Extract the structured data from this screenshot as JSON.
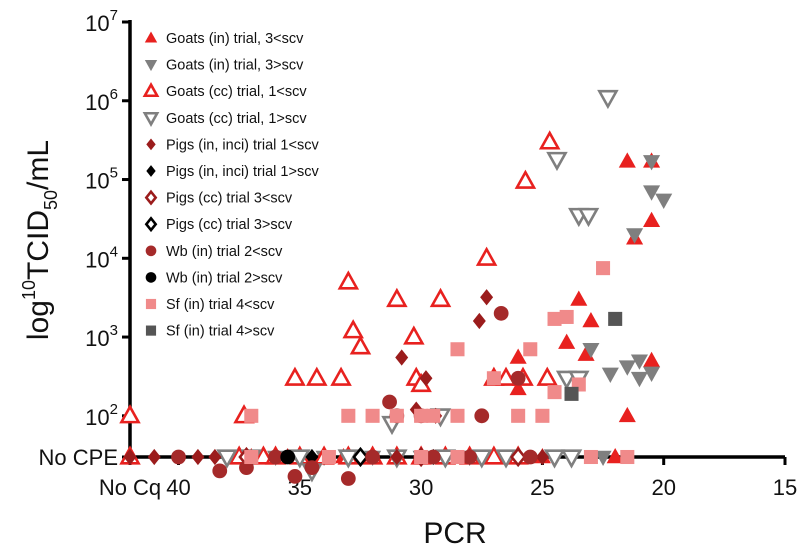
{
  "chart_data": {
    "type": "scatter",
    "title": "",
    "xlabel": "PCR",
    "ylabel": {
      "pre": "log",
      "sup": "10",
      "mid": "TCID",
      "sub": "50",
      "post": "/mL"
    },
    "x_reversed": true,
    "xlim": [
      15,
      42
    ],
    "x_ticks": [
      40,
      35,
      30,
      25,
      20,
      15
    ],
    "x_extra_tick": {
      "label": "No Cq",
      "value": 42
    },
    "y_scale": "log",
    "ylim": [
      30,
      10000000
    ],
    "y_ticks": [
      {
        "base": "10",
        "exp": "7",
        "value": 10000000
      },
      {
        "base": "10",
        "exp": "6",
        "value": 1000000
      },
      {
        "base": "10",
        "exp": "5",
        "value": 100000
      },
      {
        "base": "10",
        "exp": "4",
        "value": 10000
      },
      {
        "base": "10",
        "exp": "3",
        "value": 1000
      },
      {
        "base": "10",
        "exp": "2",
        "value": 100
      }
    ],
    "y_extra_tick": {
      "label": "No CPE",
      "value": 30
    },
    "legend_position": "top-left",
    "series": [
      {
        "name": "Goats (in) trial, 3<scv",
        "marker": "triangle-up",
        "fill": true,
        "color": "#e8211f",
        "points": [
          [
            21.5,
            170000
          ],
          [
            20.5,
            170000
          ],
          [
            21.2,
            18000
          ],
          [
            20.5,
            30000
          ],
          [
            23.5,
            3000
          ],
          [
            23,
            1600
          ],
          [
            24,
            850
          ],
          [
            23.2,
            600
          ],
          [
            26,
            550
          ],
          [
            24.8,
            320
          ],
          [
            26.5,
            300
          ],
          [
            26,
            220
          ],
          [
            21.5,
            100
          ],
          [
            20.5,
            500
          ],
          [
            22,
            30
          ],
          [
            25,
            30
          ],
          [
            27,
            30
          ],
          [
            29,
            30
          ],
          [
            31,
            30
          ],
          [
            33,
            30
          ],
          [
            35,
            30
          ],
          [
            37,
            30
          ],
          [
            35.5,
            30
          ],
          [
            33.2,
            30
          ]
        ]
      },
      {
        "name": "Goats (in) trial, 3>scv",
        "marker": "triangle-down",
        "fill": true,
        "color": "#7f7f7f",
        "points": [
          [
            21,
            500
          ],
          [
            20.5,
            170000
          ],
          [
            20.5,
            70000
          ],
          [
            20,
            55000
          ],
          [
            21.2,
            20000
          ],
          [
            21,
            300
          ],
          [
            20.5,
            350
          ],
          [
            22.2,
            340
          ],
          [
            21.5,
            420
          ],
          [
            23,
            700
          ],
          [
            22.5,
            30
          ],
          [
            24.5,
            30
          ],
          [
            28,
            30
          ],
          [
            30,
            30
          ],
          [
            32,
            30
          ],
          [
            34,
            30
          ],
          [
            36,
            30
          ]
        ]
      },
      {
        "name": "Goats (cc) trial, 1<scv",
        "marker": "triangle-up",
        "fill": false,
        "color": "#e8211f",
        "points": [
          [
            42,
            100
          ],
          [
            42,
            30
          ],
          [
            37.3,
            100
          ],
          [
            33,
            5000
          ],
          [
            31,
            3000
          ],
          [
            29.2,
            3000
          ],
          [
            32.8,
            1200
          ],
          [
            32.5,
            750
          ],
          [
            30.3,
            1000
          ],
          [
            35.2,
            300
          ],
          [
            34.3,
            300
          ],
          [
            33.3,
            300
          ],
          [
            30.2,
            300
          ],
          [
            30,
            250
          ],
          [
            27.3,
            10000
          ],
          [
            25.7,
            95000
          ],
          [
            24.7,
            300000
          ],
          [
            27,
            300
          ],
          [
            26.5,
            300
          ],
          [
            25.8,
            300
          ],
          [
            24.8,
            300
          ],
          [
            37.5,
            30
          ],
          [
            36.5,
            30
          ],
          [
            36,
            30
          ],
          [
            35,
            30
          ],
          [
            34,
            30
          ],
          [
            33,
            30
          ],
          [
            32,
            30
          ],
          [
            31,
            30
          ],
          [
            30,
            30
          ],
          [
            29,
            30
          ],
          [
            28,
            30
          ],
          [
            27,
            30
          ],
          [
            26,
            30
          ]
        ]
      },
      {
        "name": "Goats (cc) trial, 1>scv",
        "marker": "triangle-down",
        "fill": false,
        "color": "#7f7f7f",
        "points": [
          [
            22.3,
            1100000
          ],
          [
            24.4,
            180000
          ],
          [
            23.5,
            35000
          ],
          [
            23.1,
            35000
          ],
          [
            38,
            30
          ],
          [
            37,
            30
          ],
          [
            34.5,
            20
          ],
          [
            31.2,
            80
          ],
          [
            29.2,
            100
          ],
          [
            24,
            300
          ],
          [
            23.5,
            300
          ],
          [
            35,
            30
          ],
          [
            33,
            30
          ],
          [
            31,
            30
          ],
          [
            29,
            30
          ],
          [
            27.5,
            30
          ],
          [
            26.5,
            30
          ],
          [
            24.5,
            30
          ],
          [
            23.8,
            30
          ]
        ]
      },
      {
        "name": "Pigs (in, inci) trial 1<scv",
        "marker": "diamond",
        "fill": true,
        "color": "#9b1c1c",
        "points": [
          [
            42,
            30
          ],
          [
            41,
            30
          ],
          [
            39.2,
            30
          ],
          [
            38.5,
            30
          ],
          [
            27.3,
            3200
          ],
          [
            27.6,
            1600
          ],
          [
            30.8,
            550
          ],
          [
            29.8,
            300
          ],
          [
            29.4,
            100
          ],
          [
            30.2,
            120
          ],
          [
            31,
            30
          ],
          [
            28,
            30
          ],
          [
            26,
            30
          ],
          [
            25,
            30
          ]
        ]
      },
      {
        "name": "Pigs (in, inci) trial 1>scv",
        "marker": "diamond",
        "fill": true,
        "color": "#000000",
        "points": [
          [
            29.5,
            30
          ],
          [
            34.5,
            30
          ]
        ]
      },
      {
        "name": "Pigs (cc) trial 3<scv",
        "marker": "diamond",
        "fill": false,
        "color": "#9b1c1c",
        "points": [
          [
            37.2,
            30
          ],
          [
            30,
            30
          ],
          [
            26,
            30
          ]
        ]
      },
      {
        "name": "Pigs (cc) trial 3>scv",
        "marker": "diamond",
        "fill": false,
        "color": "#000000",
        "points": [
          [
            32.5,
            30
          ]
        ]
      },
      {
        "name": "Wb (in) trial 2<scv",
        "marker": "circle",
        "fill": true,
        "color": "#a52a2a",
        "points": [
          [
            40,
            30
          ],
          [
            38.3,
            20
          ],
          [
            37.2,
            22
          ],
          [
            35.2,
            17
          ],
          [
            34.5,
            22
          ],
          [
            33,
            16
          ],
          [
            31.3,
            150
          ],
          [
            31,
            100
          ],
          [
            30,
            100
          ],
          [
            27.5,
            100
          ],
          [
            26.7,
            2000
          ],
          [
            26,
            300
          ],
          [
            36,
            30
          ],
          [
            32,
            30
          ],
          [
            29.5,
            30
          ],
          [
            28,
            30
          ],
          [
            25.5,
            30
          ]
        ]
      },
      {
        "name": "Wb (in) trial 2>scv",
        "marker": "circle",
        "fill": true,
        "color": "#000000",
        "points": [
          [
            35.5,
            30
          ]
        ]
      },
      {
        "name": "Sf (in) trial 4<scv",
        "marker": "square",
        "fill": true,
        "color": "#f08a8a",
        "points": [
          [
            37,
            100
          ],
          [
            33,
            100
          ],
          [
            32,
            100
          ],
          [
            31,
            100
          ],
          [
            30,
            100
          ],
          [
            29.5,
            100
          ],
          [
            28.5,
            100
          ],
          [
            27,
            300
          ],
          [
            26,
            100
          ],
          [
            25,
            100
          ],
          [
            24.5,
            1700
          ],
          [
            24,
            1800
          ],
          [
            23.5,
            250
          ],
          [
            24.5,
            200
          ],
          [
            28.5,
            700
          ],
          [
            25.5,
            700
          ],
          [
            22.5,
            7500
          ],
          [
            21.5,
            30
          ],
          [
            23,
            30
          ],
          [
            30,
            30
          ],
          [
            28.5,
            30
          ],
          [
            37,
            30
          ],
          [
            33.8,
            30
          ]
        ]
      },
      {
        "name": "Sf (in) trial 4>scv",
        "marker": "square",
        "fill": true,
        "color": "#555555",
        "points": [
          [
            22,
            1700
          ],
          [
            23.8,
            190
          ]
        ]
      }
    ]
  }
}
